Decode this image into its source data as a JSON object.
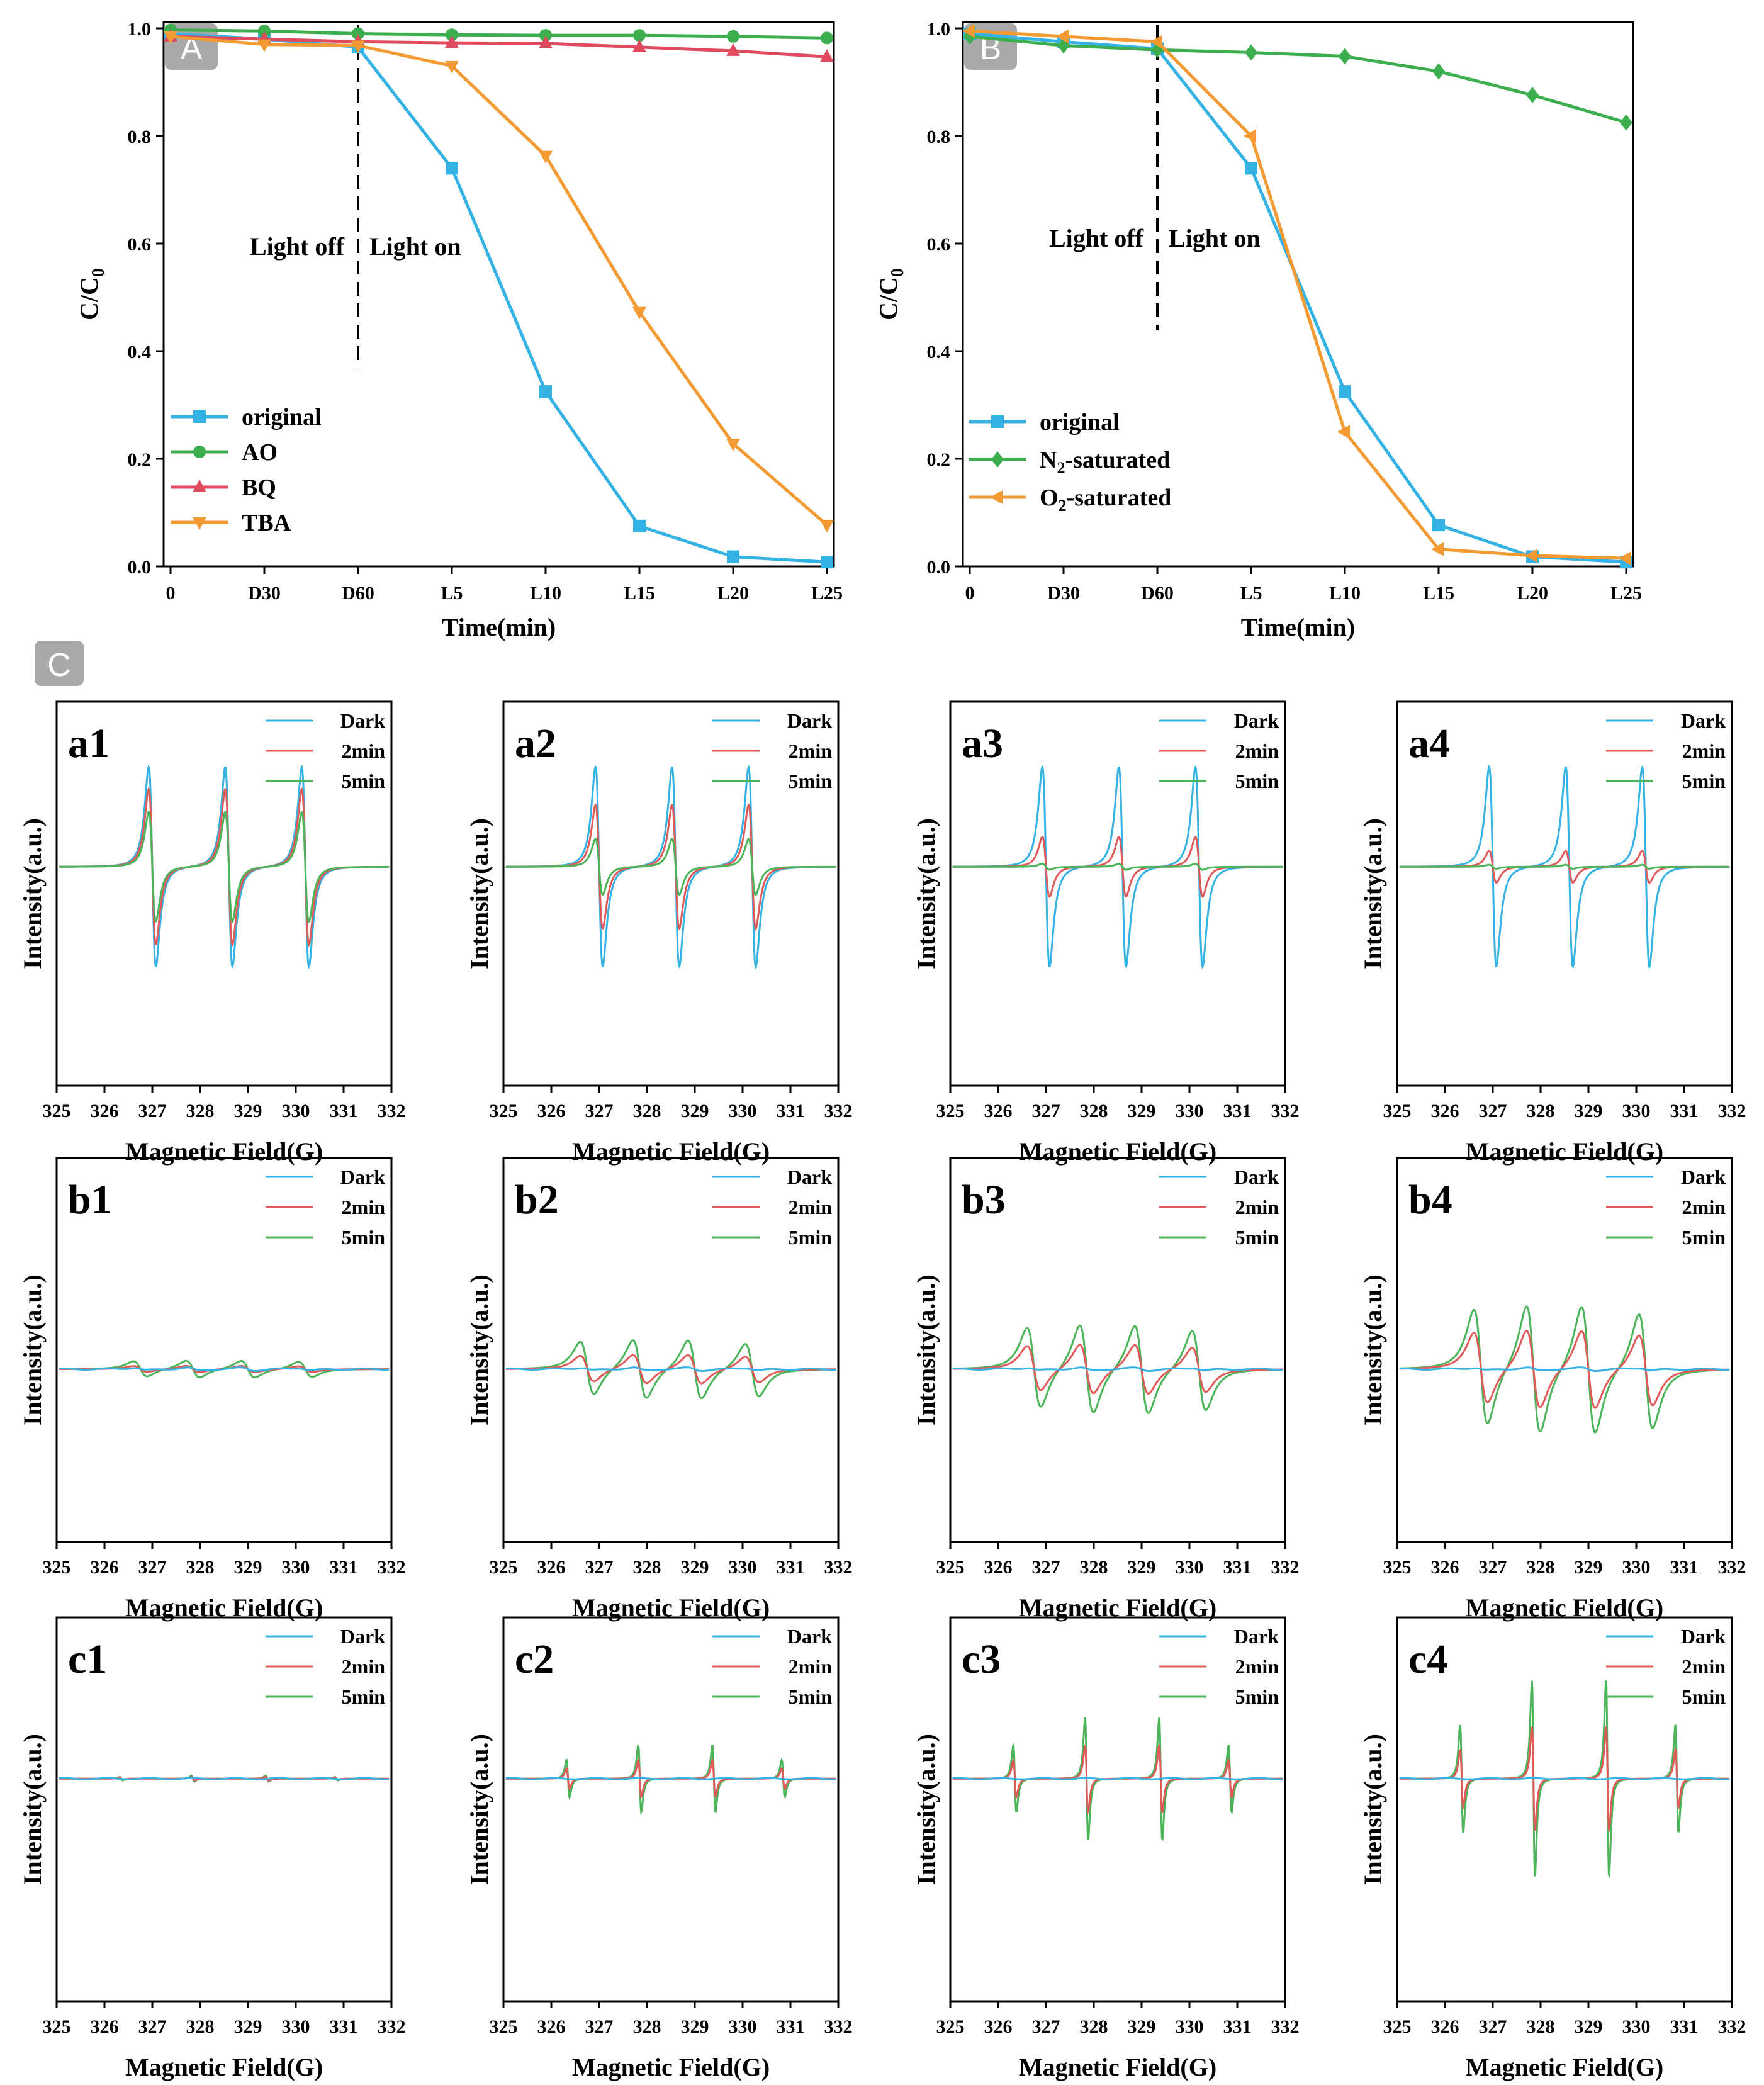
{
  "colors": {
    "blue": "#35b2e4",
    "green": "#3cae4e",
    "red": "#e04a5f",
    "orange": "#f39a32",
    "eprRed": "#e05a5a",
    "eprGreen": "#4cb55a"
  },
  "chart_data": [
    {
      "type": "line",
      "panel_label": "A",
      "xlabel": "Time(min)",
      "ylabel": "C/C",
      "ylabel_sub": "0",
      "categories": [
        "0",
        "D30",
        "D60",
        "L5",
        "L10",
        "L15",
        "L20",
        "L25"
      ],
      "ylim": [
        0,
        1.0
      ],
      "yticks": [
        "0.0",
        "0.2",
        "0.4",
        "0.6",
        "0.8",
        "1.0"
      ],
      "annotations": [
        "Light off",
        "Light on"
      ],
      "series": [
        {
          "name": "original",
          "marker": "square",
          "color": "#35b2e4",
          "values": [
            0.99,
            0.98,
            0.965,
            0.74,
            0.325,
            0.075,
            0.018,
            0.008
          ]
        },
        {
          "name": "AO",
          "marker": "circle",
          "color": "#3cae4e",
          "values": [
            0.997,
            0.995,
            0.99,
            0.988,
            0.987,
            0.987,
            0.985,
            0.982
          ]
        },
        {
          "name": "BQ",
          "marker": "triangle-up",
          "color": "#e04a5f",
          "values": [
            0.985,
            0.98,
            0.975,
            0.973,
            0.972,
            0.965,
            0.958,
            0.947
          ]
        },
        {
          "name": "TBA",
          "marker": "triangle-down",
          "color": "#f39a32",
          "values": [
            0.985,
            0.97,
            0.968,
            0.93,
            0.763,
            0.473,
            0.228,
            0.077
          ]
        }
      ]
    },
    {
      "type": "line",
      "panel_label": "B",
      "xlabel": "Time(min)",
      "ylabel": "C/C",
      "ylabel_sub": "0",
      "categories": [
        "0",
        "D30",
        "D60",
        "L5",
        "L10",
        "L15",
        "L20",
        "L25"
      ],
      "ylim": [
        0,
        1.0
      ],
      "yticks": [
        "0.0",
        "0.2",
        "0.4",
        "0.6",
        "0.8",
        "1.0"
      ],
      "annotations": [
        "Light off",
        "Light on"
      ],
      "series": [
        {
          "name": "original",
          "marker": "square",
          "color": "#35b2e4",
          "values": [
            0.99,
            0.975,
            0.962,
            0.74,
            0.325,
            0.077,
            0.018,
            0.008
          ]
        },
        {
          "name": "N2-saturated",
          "label_main": "N",
          "label_sub": "2",
          "label_rest": "-saturated",
          "marker": "diamond",
          "color": "#3cae4e",
          "values": [
            0.985,
            0.968,
            0.96,
            0.955,
            0.948,
            0.92,
            0.876,
            0.825
          ]
        },
        {
          "name": "O2-saturated",
          "label_main": "O",
          "label_sub": "2",
          "label_rest": "-saturated",
          "marker": "triangle-left",
          "color": "#f39a32",
          "values": [
            0.995,
            0.985,
            0.975,
            0.8,
            0.25,
            0.032,
            0.02,
            0.015
          ]
        }
      ]
    },
    {
      "type": "epr-grid",
      "panel_label": "C",
      "xlabel": "Magnetic Field(G)",
      "ylabel": "Intensity(a.u.)",
      "xticks": [
        "325",
        "326",
        "327",
        "328",
        "329",
        "330",
        "331",
        "332"
      ],
      "legend": [
        "Dark",
        "2min",
        "5min"
      ],
      "rows": [
        {
          "kind": "a",
          "labels": [
            "a1",
            "a2",
            "a3",
            "a4"
          ],
          "dark": [
            1.0,
            1.0,
            1.0,
            1.0
          ],
          "two": [
            0.78,
            0.62,
            0.3,
            0.16
          ],
          "five": [
            0.55,
            0.28,
            0.03,
            0.02
          ]
        },
        {
          "kind": "b",
          "labels": [
            "b1",
            "b2",
            "b3",
            "b4"
          ],
          "dark": [
            0.02,
            0.02,
            0.02,
            0.02
          ],
          "two": [
            0.05,
            0.22,
            0.38,
            0.6
          ],
          "five": [
            0.13,
            0.45,
            0.68,
            0.98
          ]
        },
        {
          "kind": "c",
          "labels": [
            "c1",
            "c2",
            "c3",
            "c4"
          ],
          "dark": [
            0.0,
            0.0,
            0.0,
            0.0
          ],
          "two": [
            0.03,
            0.3,
            0.55,
            0.85
          ],
          "five": [
            0.05,
            0.55,
            1.0,
            1.6
          ]
        }
      ]
    }
  ]
}
